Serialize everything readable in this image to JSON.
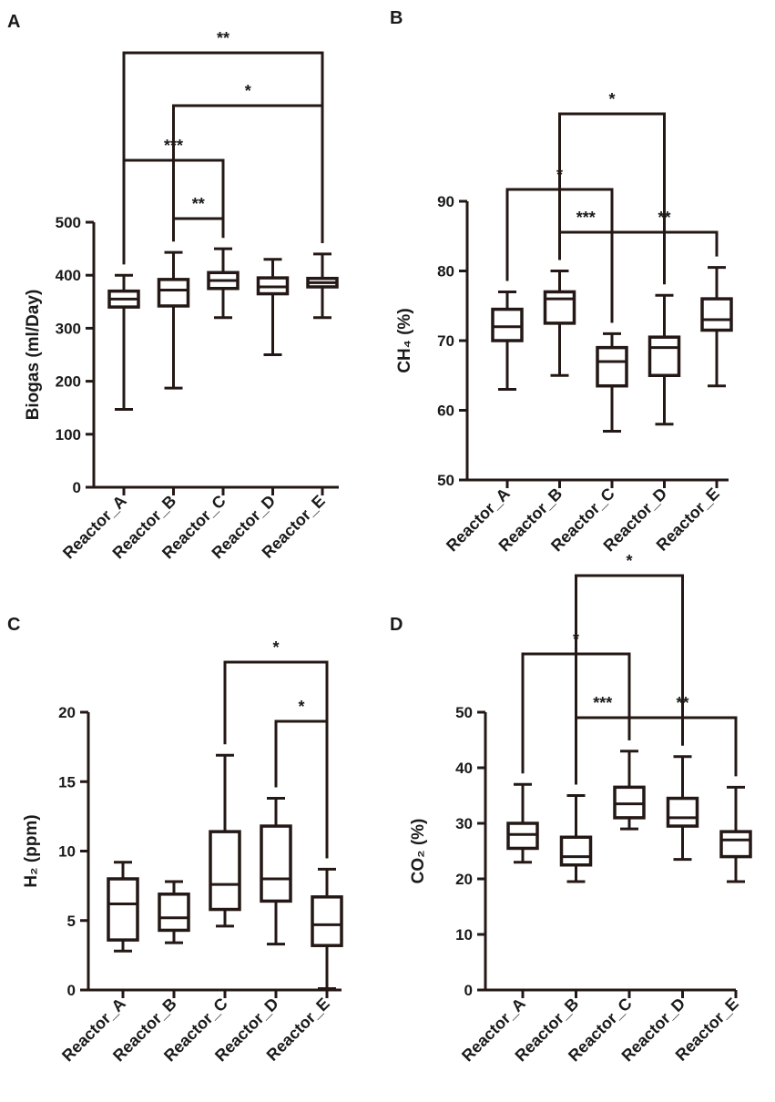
{
  "chart_data": [
    {
      "panel": "A",
      "type": "box",
      "ylabel": "Biogas (ml/Day)",
      "ylim": [
        0,
        500
      ],
      "yticks": [
        0,
        100,
        200,
        300,
        400,
        500
      ],
      "categories": [
        "Reactor_A",
        "Reactor_B",
        "Reactor_C",
        "Reactor_D",
        "Reactor_E"
      ],
      "boxes": [
        {
          "min": 147,
          "q1": 340,
          "median": 355,
          "q3": 370,
          "max": 400
        },
        {
          "min": 187,
          "q1": 342,
          "median": 372,
          "q3": 392,
          "max": 443
        },
        {
          "min": 320,
          "q1": 375,
          "median": 390,
          "q3": 405,
          "max": 450
        },
        {
          "min": 250,
          "q1": 365,
          "median": 378,
          "q3": 395,
          "max": 430
        },
        {
          "min": 320,
          "q1": 378,
          "median": 386,
          "q3": 394,
          "max": 440
        }
      ],
      "significance": [
        {
          "from": 1,
          "to": 2,
          "label": "**",
          "level": 1
        },
        {
          "from": 0,
          "to": 2,
          "label": "***",
          "level": 2
        },
        {
          "from": 1,
          "to": 4,
          "label": "*",
          "level": 3
        },
        {
          "from": 0,
          "to": 4,
          "label": "**",
          "level": 4
        }
      ]
    },
    {
      "panel": "B",
      "type": "box",
      "ylabel": "CH₄ (%)",
      "ylim": [
        50,
        90
      ],
      "yticks": [
        50,
        60,
        70,
        80,
        90
      ],
      "categories": [
        "Reactor_A",
        "Reactor_B",
        "Reactor_C",
        "Reactor_D",
        "Reactor_E"
      ],
      "boxes": [
        {
          "min": 63,
          "q1": 70,
          "median": 72,
          "q3": 74.5,
          "max": 77
        },
        {
          "min": 65,
          "q1": 72.5,
          "median": 76,
          "q3": 77,
          "max": 80
        },
        {
          "min": 57,
          "q1": 63.5,
          "median": 67,
          "q3": 69,
          "max": 71
        },
        {
          "min": 58,
          "q1": 65,
          "median": 69,
          "q3": 70.5,
          "max": 76.5
        },
        {
          "min": 63.5,
          "q1": 71.5,
          "median": 73,
          "q3": 76,
          "max": 80.5
        }
      ],
      "significance": [
        {
          "from": 1,
          "to": 2,
          "label": "***",
          "level": 1
        },
        {
          "from": 2,
          "to": 4,
          "label": "**",
          "level": 1
        },
        {
          "from": 0,
          "to": 2,
          "label": "*",
          "level": 2
        },
        {
          "from": 1,
          "to": 3,
          "label": "*",
          "level": 3
        }
      ]
    },
    {
      "panel": "C",
      "type": "box",
      "ylabel": "H₂ (ppm)",
      "ylim": [
        0,
        20
      ],
      "yticks": [
        0,
        5,
        10,
        15,
        20
      ],
      "categories": [
        "Reactor_A",
        "Reactor_B",
        "Reactor_C",
        "Reactor_D",
        "Reactor_E"
      ],
      "boxes": [
        {
          "min": 2.8,
          "q1": 3.6,
          "median": 6.2,
          "q3": 8.0,
          "max": 9.2
        },
        {
          "min": 3.4,
          "q1": 4.3,
          "median": 5.2,
          "q3": 6.9,
          "max": 7.8
        },
        {
          "min": 4.6,
          "q1": 5.8,
          "median": 7.6,
          "q3": 11.4,
          "max": 16.9
        },
        {
          "min": 3.3,
          "q1": 6.4,
          "median": 8.0,
          "q3": 11.8,
          "max": 13.8
        },
        {
          "min": 0.1,
          "q1": 3.2,
          "median": 4.7,
          "q3": 6.7,
          "max": 8.7
        }
      ],
      "significance": [
        {
          "from": 3,
          "to": 4,
          "label": "*",
          "level": 1
        },
        {
          "from": 2,
          "to": 4,
          "label": "*",
          "level": 2
        }
      ]
    },
    {
      "panel": "D",
      "type": "box",
      "ylabel": "CO₂ (%)",
      "ylim": [
        0,
        50
      ],
      "yticks": [
        0,
        10,
        20,
        30,
        40,
        50
      ],
      "categories": [
        "Reactor_A",
        "Reactor_B",
        "Reactor_C",
        "Reactor_D",
        "Reactor_E"
      ],
      "boxes": [
        {
          "min": 23,
          "q1": 25.5,
          "median": 28,
          "q3": 30,
          "max": 37
        },
        {
          "min": 19.5,
          "q1": 22.5,
          "median": 24,
          "q3": 27.5,
          "max": 35
        },
        {
          "min": 29,
          "q1": 31,
          "median": 33.5,
          "q3": 36.5,
          "max": 43
        },
        {
          "min": 23.5,
          "q1": 29.5,
          "median": 31,
          "q3": 34.5,
          "max": 42
        },
        {
          "min": 19.5,
          "q1": 24,
          "median": 27,
          "q3": 28.5,
          "max": 36.5
        }
      ],
      "significance": [
        {
          "from": 1,
          "to": 2,
          "label": "***",
          "level": 1
        },
        {
          "from": 2,
          "to": 4,
          "label": "**",
          "level": 1
        },
        {
          "from": 0,
          "to": 2,
          "label": "*",
          "level": 2
        },
        {
          "from": 1,
          "to": 3,
          "label": "*",
          "level": 3
        }
      ]
    }
  ]
}
